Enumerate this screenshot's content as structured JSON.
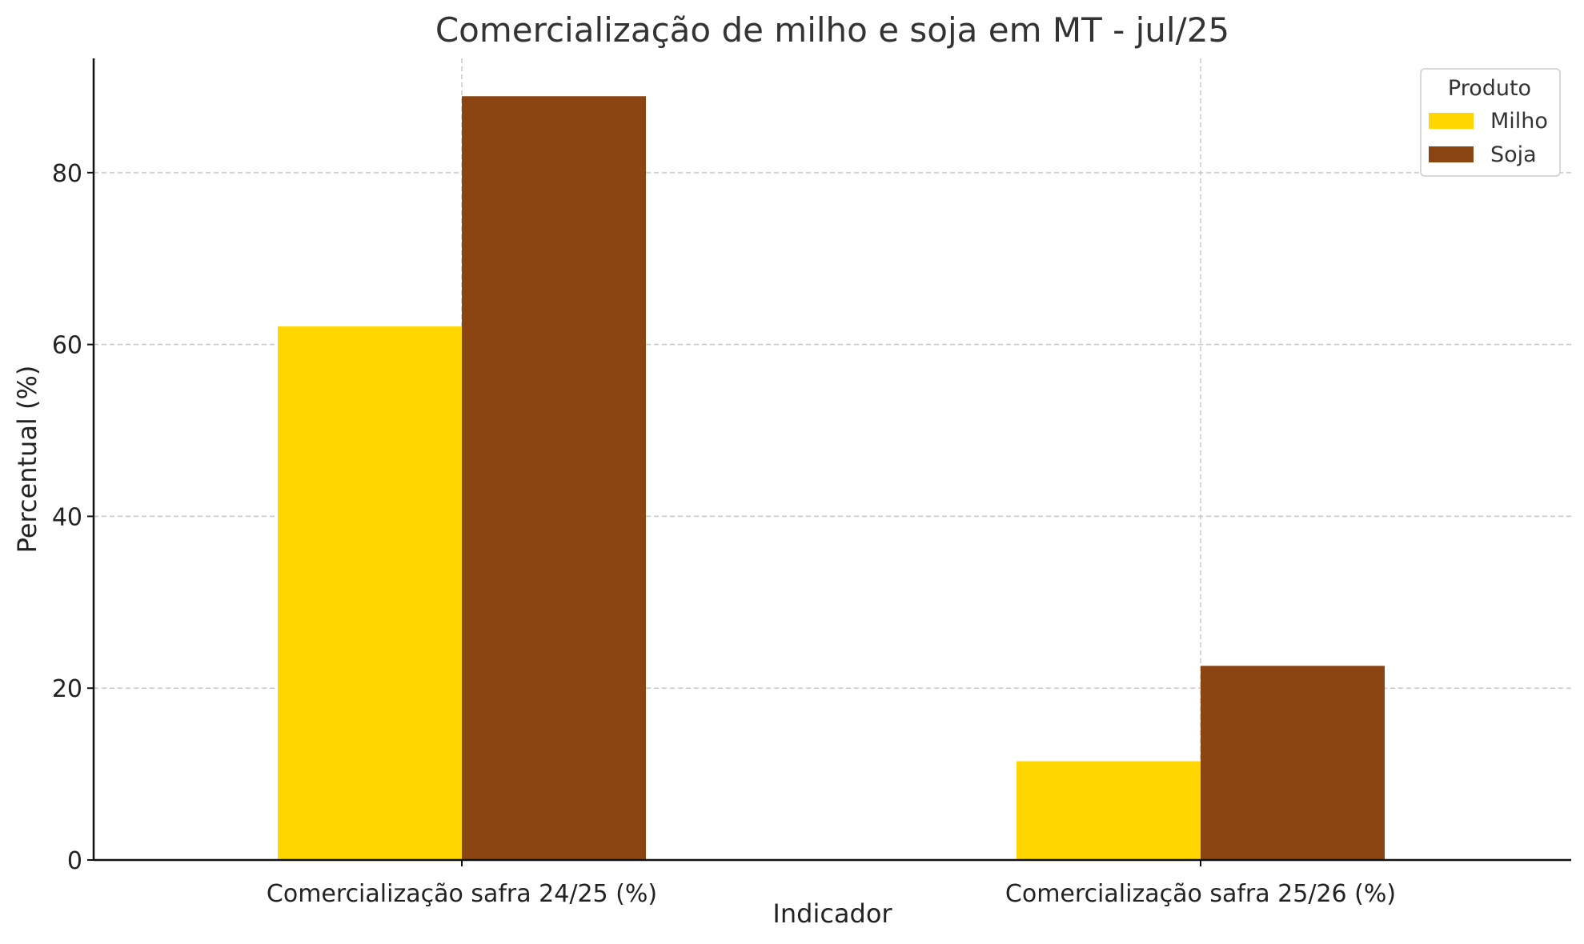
{
  "chart_data": {
    "type": "bar",
    "title": "Comercialização de milho e soja em MT - jul/25",
    "xlabel": "Indicador",
    "ylabel": "Percentual (%)",
    "categories": [
      "Comercialização safra 24/25 (%)",
      "Comercialização safra 25/26 (%)"
    ],
    "series": [
      {
        "name": "Milho",
        "color": "#FFD700",
        "values": [
          62.1,
          11.5
        ]
      },
      {
        "name": "Soja",
        "color": "#8B4513",
        "values": [
          88.9,
          22.6
        ]
      }
    ],
    "yticks": [
      0,
      20,
      40,
      60,
      80
    ],
    "ylim": [
      0,
      93.3
    ],
    "grid": true,
    "legend": {
      "title": "Produto",
      "position": "top-right"
    }
  }
}
